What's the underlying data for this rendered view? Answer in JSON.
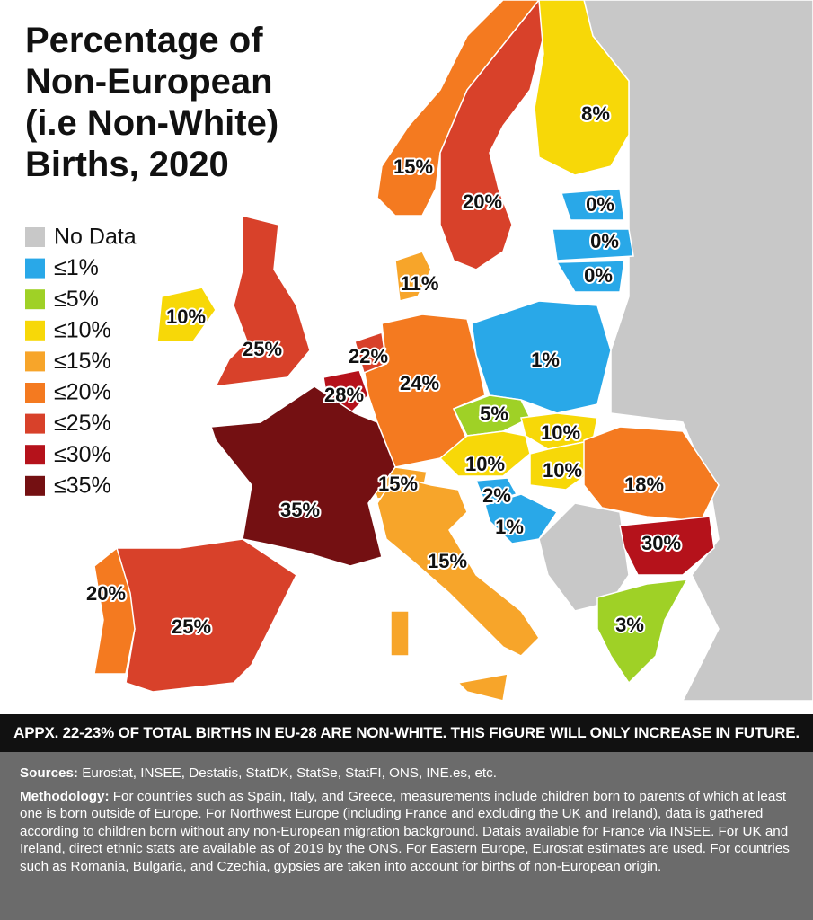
{
  "title": [
    "Percentage of",
    "Non-European",
    "(i.e Non-White)",
    "Births, 2020"
  ],
  "legend": [
    {
      "label": "No Data",
      "color": "#c8c8c8"
    },
    {
      "label": "≤1%",
      "color": "#29a8e8"
    },
    {
      "label": "≤5%",
      "color": "#9fd126"
    },
    {
      "label": "≤10%",
      "color": "#f7d808"
    },
    {
      "label": "≤15%",
      "color": "#f7a52a"
    },
    {
      "label": "≤20%",
      "color": "#f47a20"
    },
    {
      "label": "≤25%",
      "color": "#d8412a"
    },
    {
      "label": "≤30%",
      "color": "#b5121b"
    },
    {
      "label": "≤35%",
      "color": "#741012"
    }
  ],
  "map_labels": [
    "8%",
    "15%",
    "20%",
    "0%",
    "0%",
    "0%",
    "11%",
    "10%",
    "25%",
    "22%",
    "28%",
    "24%",
    "1%",
    "5%",
    "10%",
    "10%",
    "10%",
    "15%",
    "2%",
    "1%",
    "18%",
    "35%",
    "15%",
    "30%",
    "20%",
    "25%",
    "3%"
  ],
  "banner": "APPX. 22-23% OF TOTAL BIRTHS IN EU-28 ARE NON-WHITE. THIS FIGURE WILL ONLY INCREASE IN FUTURE.",
  "sources": {
    "label": "Sources:",
    "text": "Eurostat, INSEE, Destatis, StatDK, StatSe, StatFI, ONS, INE.es, etc."
  },
  "methodology": {
    "label": "Methodology:",
    "text": "For countries such as Spain, Italy, and Greece, measurements include children born to parents of which at least one is born outside of Europe. For Northwest Europe (including France and excluding the UK and Ireland), data is gathered according to children born without any non-European migration background. Datais available for France via INSEE. For UK and Ireland, direct ethnic stats are available as of 2019 by the ONS. For Eastern Europe, Eurostat estimates are used. For countries such as Romania, Bulgaria, and Czechia, gypsies are taken into account for births of non-European origin."
  }
}
